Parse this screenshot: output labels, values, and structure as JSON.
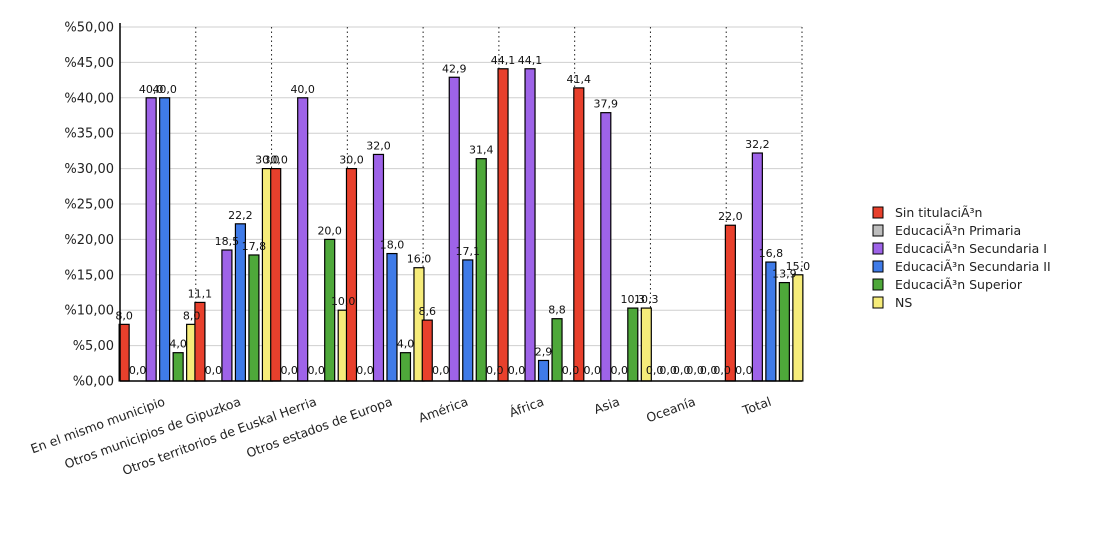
{
  "chart_data": {
    "type": "bar",
    "categories": [
      "En el mismo municipio",
      "Otros municipios de Gipuzkoa",
      "Otros territorios de Euskal Herria",
      "Otros estados de Europa",
      "América",
      "África",
      "Asia",
      "Oceanía",
      "Total"
    ],
    "series": [
      {
        "name": "Sin titulaciÃ³n",
        "color": "#e8402c",
        "values": [
          8.0,
          11.1,
          30.0,
          30.0,
          8.6,
          44.1,
          41.4,
          0.0,
          22.0
        ]
      },
      {
        "name": "EducaciÃ³n Primaria",
        "color": "#bdbdbd",
        "values": [
          0.0,
          0.0,
          0.0,
          0.0,
          0.0,
          0.0,
          0.0,
          0.0,
          0.0
        ]
      },
      {
        "name": "EducaciÃ³n Secundaria I",
        "color": "#9e63e8",
        "values": [
          40.0,
          18.5,
          40.0,
          32.0,
          42.9,
          44.1,
          37.9,
          0.0,
          32.2
        ]
      },
      {
        "name": "EducaciÃ³n Secundaria II",
        "color": "#3f7be8",
        "values": [
          40.0,
          22.2,
          0.0,
          18.0,
          17.1,
          2.9,
          0.0,
          0.0,
          16.8
        ]
      },
      {
        "name": "EducaciÃ³n Superior",
        "color": "#4ea83a",
        "values": [
          4.0,
          17.8,
          20.0,
          4.0,
          31.4,
          8.8,
          10.3,
          0.0,
          13.9
        ]
      },
      {
        "name": "NS",
        "color": "#f6ec7a",
        "values": [
          8.0,
          30.0,
          10.0,
          16.0,
          0.0,
          0.0,
          10.3,
          0.0,
          15.0
        ]
      }
    ],
    "data_labels": [
      [
        "8,0",
        "11,1",
        "30,0",
        "30,0",
        "8,6",
        "44,1",
        "41,4",
        "0,0",
        "22,0"
      ],
      [
        "0,0",
        "0,0",
        "0,0",
        "0,0",
        "0,0",
        "0,0",
        "0,0",
        "0,0",
        "0,0"
      ],
      [
        "40,0",
        "18,5",
        "40,0",
        "32,0",
        "42,9",
        "44,1",
        "37,9",
        "0,0",
        "32,2"
      ],
      [
        "40,0",
        "22,2",
        "0,0",
        "18,0",
        "17,1",
        "2,9",
        "0,0",
        "0,0",
        "16,8"
      ],
      [
        "4,0",
        "17,8",
        "20,0",
        "4,0",
        "31,4",
        "8,8",
        "10,3",
        "0,0",
        "13,9"
      ],
      [
        "8,0",
        "30,0",
        "10,0",
        "16,0",
        "0,0",
        "0,0",
        "10,3",
        "0,0",
        "15,0"
      ]
    ],
    "hidden_zero_labels": [
      [],
      [],
      [],
      [],
      [],
      [
        "0"
      ]
    ],
    "y_ticks": [
      0,
      5,
      10,
      15,
      20,
      25,
      30,
      35,
      40,
      45,
      50
    ],
    "y_tick_labels": [
      "%0,00",
      "%5,00",
      "%10,00",
      "%15,00",
      "%20,00",
      "%25,00",
      "%30,00",
      "%35,00",
      "%40,00",
      "%45,00",
      "%50,00"
    ],
    "ylim": [
      0,
      50
    ],
    "grid": true,
    "legend_position": "right",
    "title": "",
    "xlabel": "",
    "ylabel": ""
  }
}
